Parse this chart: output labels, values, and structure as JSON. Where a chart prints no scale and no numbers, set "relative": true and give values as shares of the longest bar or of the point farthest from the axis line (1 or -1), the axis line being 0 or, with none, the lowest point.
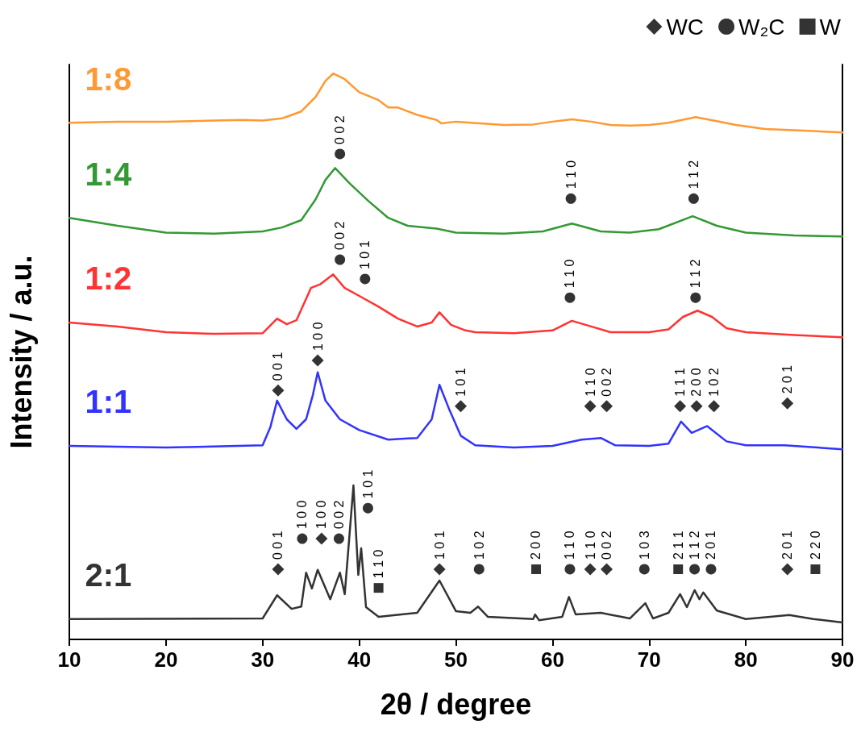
{
  "chart_data": {
    "type": "line",
    "relative": true,
    "xlabel": "2θ / degree",
    "ylabel": "Intensity / a.u.",
    "xlim": [
      10,
      90
    ],
    "xticks": [
      10,
      20,
      30,
      40,
      50,
      60,
      70,
      80,
      90
    ],
    "grid": false,
    "legend": "top right",
    "marker": "none",
    "line_style": "solid",
    "series": [
      {
        "name": "1:8",
        "color": "#ff9933",
        "x": [
          10,
          15,
          20,
          25,
          28,
          30,
          32,
          32.4,
          34,
          35.5,
          36.5,
          37.3,
          38.5,
          40,
          42,
          43,
          44,
          46,
          48,
          48.5,
          50,
          55,
          58,
          60,
          62,
          64,
          66,
          68,
          70,
          72,
          74.8,
          77,
          79,
          82,
          86,
          90
        ],
        "values": [
          0.913,
          0.915,
          0.915,
          0.917,
          0.918,
          0.917,
          0.921,
          0.923,
          0.933,
          0.959,
          0.987,
          1.0,
          0.99,
          0.967,
          0.953,
          0.94,
          0.94,
          0.927,
          0.918,
          0.912,
          0.915,
          0.909,
          0.91,
          0.915,
          0.919,
          0.915,
          0.909,
          0.908,
          0.909,
          0.913,
          0.923,
          0.916,
          0.909,
          0.902,
          0.899,
          0.896
        ]
      },
      {
        "name": "1:4",
        "color": "#339933",
        "x": [
          10,
          15,
          20,
          25,
          30,
          32,
          34,
          35.5,
          36.5,
          37.5,
          39,
          41,
          43,
          45,
          48,
          50,
          55,
          59,
          62,
          65,
          68,
          71,
          74.5,
          77,
          80,
          85,
          90
        ],
        "values": [
          0.745,
          0.731,
          0.719,
          0.717,
          0.721,
          0.728,
          0.741,
          0.778,
          0.812,
          0.833,
          0.806,
          0.774,
          0.745,
          0.731,
          0.726,
          0.719,
          0.717,
          0.721,
          0.735,
          0.721,
          0.719,
          0.725,
          0.748,
          0.731,
          0.719,
          0.714,
          0.712
        ]
      },
      {
        "name": "1:2",
        "color": "#ff3333",
        "x": [
          10,
          15,
          20,
          25,
          30,
          31.5,
          32.5,
          33.5,
          35,
          36,
          37.3,
          38.5,
          40,
          42,
          44,
          46,
          47.5,
          48.3,
          49.5,
          51,
          52,
          56,
          60,
          62,
          64,
          66,
          70,
          72,
          73.5,
          75,
          76.5,
          78,
          80,
          85,
          90
        ],
        "values": [
          0.56,
          0.553,
          0.543,
          0.54,
          0.541,
          0.567,
          0.557,
          0.564,
          0.621,
          0.628,
          0.645,
          0.621,
          0.607,
          0.588,
          0.567,
          0.553,
          0.56,
          0.578,
          0.556,
          0.546,
          0.543,
          0.541,
          0.546,
          0.563,
          0.553,
          0.543,
          0.543,
          0.548,
          0.57,
          0.581,
          0.57,
          0.55,
          0.543,
          0.538,
          0.534
        ]
      },
      {
        "name": "1:1",
        "color": "#3333ff",
        "x": [
          10,
          20,
          30,
          30.8,
          31.5,
          32.5,
          33.5,
          34.5,
          35.2,
          35.7,
          36.5,
          38,
          40,
          43,
          46,
          47.5,
          48.3,
          49.3,
          50.5,
          52,
          56,
          60,
          63,
          65,
          66.5,
          70,
          72,
          73.3,
          74.4,
          76,
          78,
          80,
          84,
          90
        ],
        "values": [
          0.342,
          0.339,
          0.343,
          0.375,
          0.422,
          0.389,
          0.372,
          0.389,
          0.432,
          0.472,
          0.422,
          0.389,
          0.37,
          0.353,
          0.356,
          0.389,
          0.45,
          0.407,
          0.36,
          0.343,
          0.339,
          0.342,
          0.353,
          0.356,
          0.343,
          0.342,
          0.346,
          0.385,
          0.365,
          0.377,
          0.35,
          0.343,
          0.343,
          0.336
        ]
      },
      {
        "name": "2:1",
        "color": "#333333",
        "x": [
          10,
          30,
          31.5,
          33,
          34,
          34.5,
          35.1,
          35.7,
          37,
          38,
          38.5,
          39.4,
          39.9,
          40.2,
          40.7,
          42,
          46,
          48.3,
          50,
          51.5,
          52.3,
          53.3,
          58,
          58.2,
          58.6,
          61,
          61.7,
          62.4,
          65,
          68,
          69.6,
          70.4,
          72,
          73.2,
          73.9,
          74.7,
          75.2,
          75.6,
          77,
          80,
          84.5,
          87,
          90
        ],
        "values": [
          0.036,
          0.037,
          0.078,
          0.054,
          0.058,
          0.118,
          0.09,
          0.123,
          0.071,
          0.118,
          0.08,
          0.272,
          0.114,
          0.161,
          0.057,
          0.04,
          0.047,
          0.104,
          0.05,
          0.047,
          0.058,
          0.04,
          0.036,
          0.044,
          0.034,
          0.04,
          0.075,
          0.044,
          0.047,
          0.037,
          0.064,
          0.037,
          0.047,
          0.08,
          0.057,
          0.087,
          0.071,
          0.083,
          0.051,
          0.036,
          0.043,
          0.036,
          0.03
        ]
      },
      {
        "name": "WC",
        "type": "scatter",
        "marker": "diamond",
        "color": "#000000",
        "x": [
          31.6,
          35.7,
          50.5,
          63.9,
          65.6,
          73.2,
          74.9,
          76.7,
          84.3,
          31.6,
          36.1,
          48.3,
          63.9,
          65.6,
          84.3
        ],
        "values": [
          0.44,
          0.493,
          0.412,
          0.412,
          0.412,
          0.412,
          0.412,
          0.412,
          0.417,
          0.124,
          0.178,
          0.124,
          0.124,
          0.124,
          0.124
        ]
      },
      {
        "name": "W₂C",
        "type": "scatter",
        "marker": "circle",
        "color": "#000000",
        "x": [
          38.0,
          61.9,
          74.6,
          38.0,
          40.6,
          61.8,
          74.8,
          34.1,
          37.9,
          40.9,
          52.4,
          61.8,
          69.5,
          74.7,
          76.4
        ],
        "values": [
          0.858,
          0.779,
          0.779,
          0.671,
          0.637,
          0.604,
          0.604,
          0.178,
          0.178,
          0.232,
          0.124,
          0.124,
          0.124,
          0.124,
          0.124
        ]
      },
      {
        "name": "W",
        "type": "scatter",
        "marker": "square",
        "color": "#000000",
        "x": [
          42.0,
          58.3,
          73.0,
          87.2
        ],
        "values": [
          0.091,
          0.124,
          0.124,
          0.124
        ]
      }
    ],
    "annotations": [
      {
        "text": "0 0 1",
        "x": 31.6,
        "y": 0.44
      },
      {
        "text": "1 0 0",
        "x": 35.7,
        "y": 0.493
      },
      {
        "text": "1 0 1",
        "x": 50.5,
        "y": 0.412
      },
      {
        "text": "1 1 0",
        "x": 63.9,
        "y": 0.412
      },
      {
        "text": "0 0 2",
        "x": 65.6,
        "y": 0.412
      },
      {
        "text": "1 1 1",
        "x": 73.2,
        "y": 0.412
      },
      {
        "text": "2 0 0",
        "x": 74.9,
        "y": 0.412
      },
      {
        "text": "1 0 2",
        "x": 76.7,
        "y": 0.412
      },
      {
        "text": "2 0 1",
        "x": 84.3,
        "y": 0.417
      },
      {
        "text": "0 0 1",
        "x": 31.6,
        "y": 0.124
      },
      {
        "text": "1 0 0",
        "x": 36.1,
        "y": 0.178
      },
      {
        "text": "1 0 1",
        "x": 48.3,
        "y": 0.124
      },
      {
        "text": "1 1 0",
        "x": 63.9,
        "y": 0.124
      },
      {
        "text": "0 0 2",
        "x": 65.6,
        "y": 0.124
      },
      {
        "text": "2 0 1",
        "x": 84.3,
        "y": 0.124
      },
      {
        "text": "0 0 2",
        "x": 38.0,
        "y": 0.858
      },
      {
        "text": "1 1 0",
        "x": 61.9,
        "y": 0.779
      },
      {
        "text": "1 1 2",
        "x": 74.6,
        "y": 0.779
      },
      {
        "text": "0 0 2",
        "x": 38.0,
        "y": 0.671
      },
      {
        "text": "1 0 1",
        "x": 40.6,
        "y": 0.637
      },
      {
        "text": "1 1 0",
        "x": 61.8,
        "y": 0.604
      },
      {
        "text": "1 1 2",
        "x": 74.8,
        "y": 0.604
      },
      {
        "text": "1 0 0",
        "x": 34.1,
        "y": 0.178
      },
      {
        "text": "0 0 2",
        "x": 37.9,
        "y": 0.178
      },
      {
        "text": "1 0 1",
        "x": 40.9,
        "y": 0.232
      },
      {
        "text": "1 0 2",
        "x": 52.4,
        "y": 0.124
      },
      {
        "text": "1 1 0",
        "x": 61.8,
        "y": 0.124
      },
      {
        "text": "1 0 3",
        "x": 69.5,
        "y": 0.124
      },
      {
        "text": "1 1 2",
        "x": 74.7,
        "y": 0.124
      },
      {
        "text": "2 0 1",
        "x": 76.4,
        "y": 0.124
      },
      {
        "text": "1 1 0",
        "x": 42.0,
        "y": 0.091
      },
      {
        "text": "2 0 0",
        "x": 58.3,
        "y": 0.124
      },
      {
        "text": "2 1 1",
        "x": 73.0,
        "y": 0.124
      },
      {
        "text": "2 2 0",
        "x": 87.2,
        "y": 0.124
      }
    ]
  }
}
